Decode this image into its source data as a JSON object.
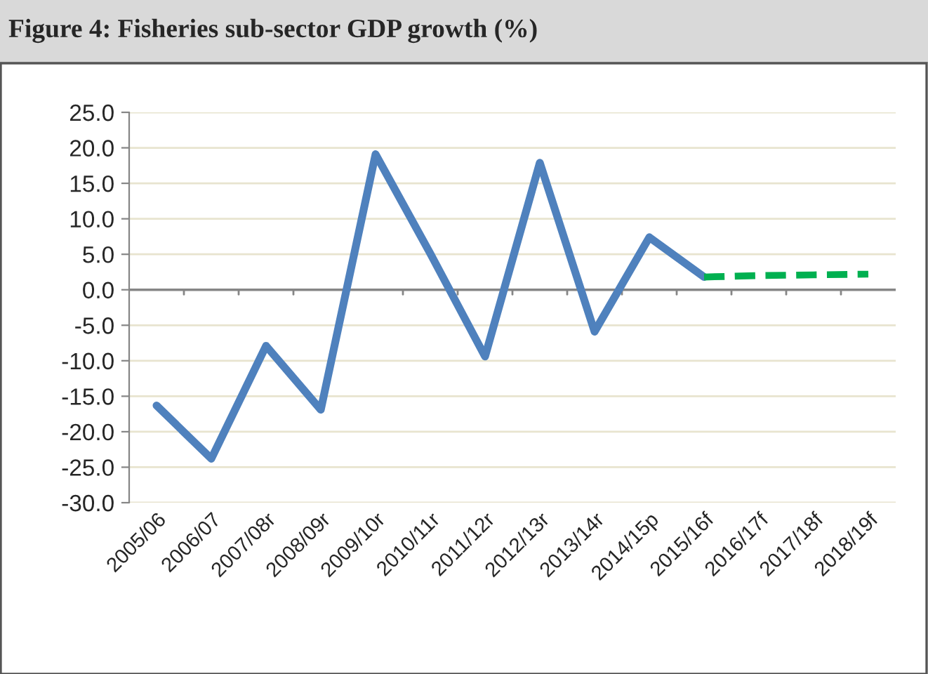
{
  "chart_data": {
    "type": "line",
    "title": "Figure 4: Fisheries sub-sector GDP growth (%)",
    "categories": [
      "2005/06",
      "2006/07",
      "2007/08r",
      "2008/09r",
      "2009/10r",
      "2010/11r",
      "2011/12r",
      "2012/13r",
      "2013/14r",
      "2014/15p",
      "2015/16f",
      "2016/17f",
      "2017/18f",
      "2018/19f"
    ],
    "series": [
      {
        "color": "#4f81bd",
        "line_style": "solid",
        "values": [
          -16.3,
          -23.8,
          -7.9,
          -16.9,
          19.1,
          5.1,
          -9.4,
          17.9,
          -5.9,
          7.4,
          1.8,
          null,
          null,
          null
        ]
      },
      {
        "color": "#00b050",
        "line_style": "dashed",
        "values": [
          null,
          null,
          null,
          null,
          null,
          null,
          null,
          null,
          null,
          null,
          1.8,
          2.0,
          2.1,
          2.2
        ]
      }
    ],
    "ylim": [
      -30,
      25
    ],
    "yticks": [
      {
        "value": -30,
        "label": "-30.0"
      },
      {
        "value": -25,
        "label": "-25.0"
      },
      {
        "value": -20,
        "label": "-20.0"
      },
      {
        "value": -15,
        "label": "-15.0"
      },
      {
        "value": -10,
        "label": "-10.0"
      },
      {
        "value": -5,
        "label": "-5.0"
      },
      {
        "value": 0,
        "label": "0.0"
      },
      {
        "value": 5,
        "label": "5.0"
      },
      {
        "value": 10,
        "label": "10.0"
      },
      {
        "value": 15,
        "label": "15.0"
      },
      {
        "value": 20,
        "label": "20.0"
      },
      {
        "value": 25,
        "label": "25.0"
      }
    ],
    "grid": "y",
    "legend": false,
    "marker": "none"
  }
}
